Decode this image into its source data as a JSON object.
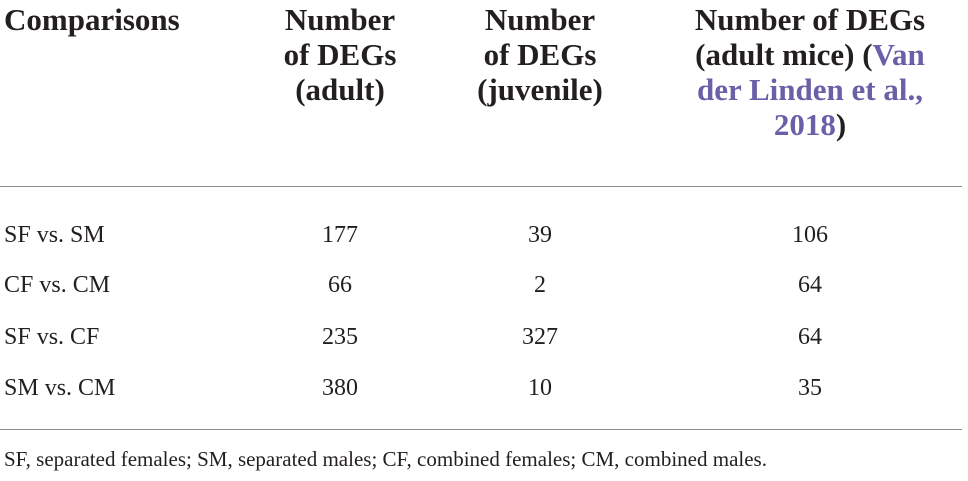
{
  "table": {
    "headers": {
      "col0": "Comparisons",
      "col1": [
        "Number",
        "of DEGs",
        "(adult)"
      ],
      "col2": [
        "Number",
        "of DEGs",
        "(juvenile)"
      ],
      "col3": {
        "line1": "Number of DEGs",
        "line2_text": "(adult mice) (",
        "line2_link": "Van",
        "line3_link": "der Linden et al.,",
        "line4_link": "2018",
        "line4_tail": ")"
      }
    },
    "rows": [
      {
        "label": "SF vs. SM",
        "adult": "177",
        "juvenile": "39",
        "adult_mice": "106"
      },
      {
        "label": "CF vs. CM",
        "adult": "66",
        "juvenile": "2",
        "adult_mice": "64"
      },
      {
        "label": "SF vs. CF",
        "adult": "235",
        "juvenile": "327",
        "adult_mice": "64"
      },
      {
        "label": "SM vs. CM",
        "adult": "380",
        "juvenile": "10",
        "adult_mice": "35"
      }
    ],
    "footnote": "SF, separated females; SM, separated males; CF, combined females; CM, combined males."
  },
  "colors": {
    "text": "#231f20",
    "link": "#6c5fa8",
    "rule": "#8a8a8a"
  }
}
